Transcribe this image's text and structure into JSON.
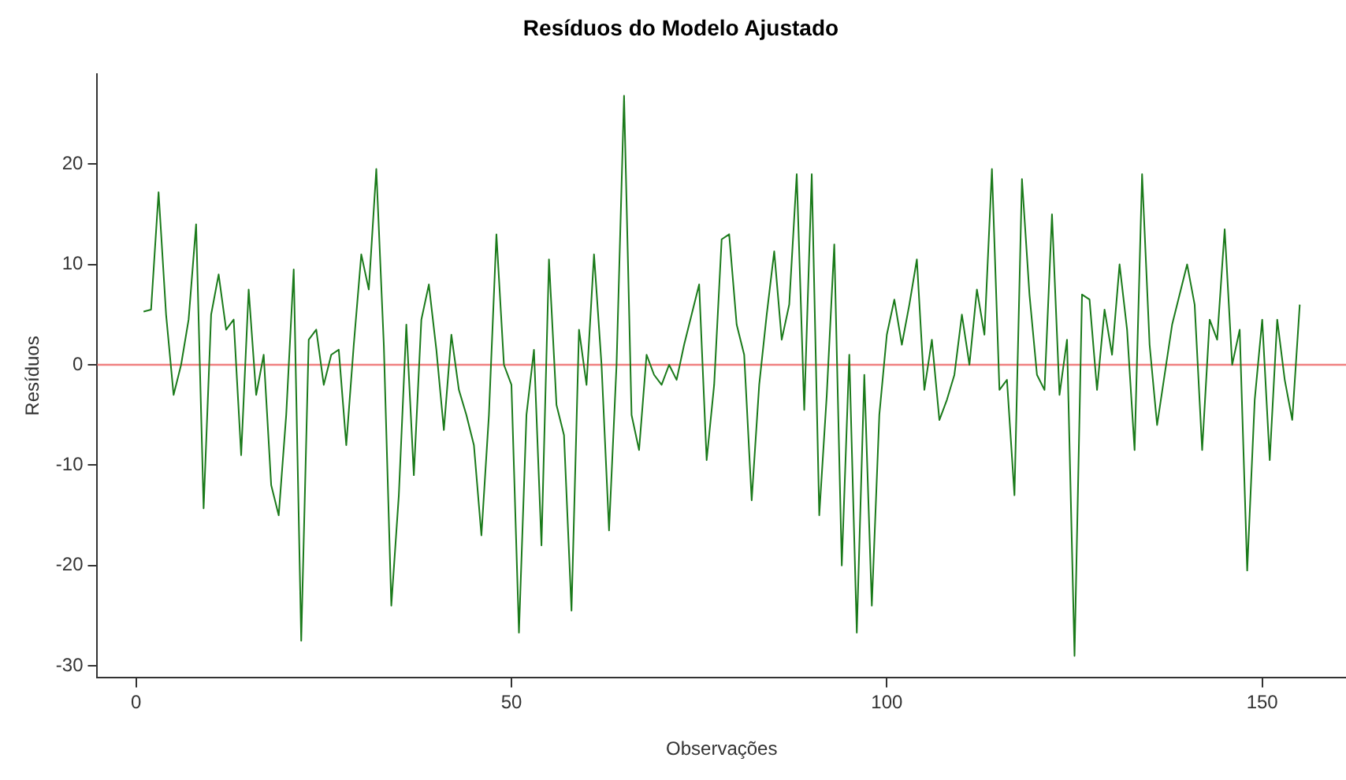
{
  "chart_data": {
    "type": "line",
    "title": "Resíduos do Modelo Ajustado",
    "xlabel": "Observações",
    "ylabel": "Resíduos",
    "x": [
      1,
      2,
      3,
      4,
      5,
      6,
      7,
      8,
      9,
      10,
      11,
      12,
      13,
      14,
      15,
      16,
      17,
      18,
      19,
      20,
      21,
      22,
      23,
      24,
      25,
      26,
      27,
      28,
      29,
      30,
      31,
      32,
      33,
      34,
      35,
      36,
      37,
      38,
      39,
      40,
      41,
      42,
      43,
      44,
      45,
      46,
      47,
      48,
      49,
      50,
      51,
      52,
      53,
      54,
      55,
      56,
      57,
      58,
      59,
      60,
      61,
      62,
      63,
      64,
      65,
      66,
      67,
      68,
      69,
      70,
      71,
      72,
      73,
      74,
      75,
      76,
      77,
      78,
      79,
      80,
      81,
      82,
      83,
      84,
      85,
      86,
      87,
      88,
      89,
      90,
      91,
      92,
      93,
      94,
      95,
      96,
      97,
      98,
      99,
      100,
      101,
      102,
      103,
      104,
      105,
      106,
      107,
      108,
      109,
      110,
      111,
      112,
      113,
      114,
      115,
      116,
      117,
      118,
      119,
      120,
      121,
      122,
      123,
      124,
      125,
      126,
      127,
      128,
      129,
      130,
      131,
      132,
      133,
      134,
      135,
      136,
      137,
      138,
      139,
      140,
      141,
      142,
      143,
      144,
      145,
      146,
      147,
      148,
      149,
      150,
      151,
      152,
      153,
      154,
      155
    ],
    "series": [
      {
        "color": "#1a7a1a",
        "values": [
          5.3,
          5.5,
          17.2,
          5,
          -3,
          0,
          4.5,
          14,
          -14.3,
          5,
          9,
          3.5,
          4.5,
          -9,
          7.5,
          -3,
          1,
          -12,
          -15,
          -5,
          9.5,
          -27.5,
          2.5,
          3.5,
          -2,
          1,
          1.5,
          -8,
          2,
          11,
          7.5,
          19.5,
          2,
          -24,
          -13,
          4,
          -11,
          4.5,
          8,
          1.5,
          -6.5,
          3,
          -2.5,
          -5,
          -8,
          -17,
          -5,
          13,
          0,
          -2,
          -26.7,
          -5,
          1.5,
          -18,
          10.5,
          -4,
          -7,
          -24.5,
          3.5,
          -2,
          11,
          0,
          -16.5,
          0,
          26.8,
          -5,
          -8.5,
          1,
          -1,
          -2,
          0,
          -1.5,
          2,
          5,
          8,
          -9.5,
          -2,
          12.5,
          13,
          4,
          1,
          -13.5,
          -2,
          5,
          11.3,
          2.5,
          6,
          19,
          -4.5,
          19,
          -15,
          -3,
          12,
          -20,
          1,
          -26.7,
          -1,
          -24,
          -5,
          3,
          6.5,
          2,
          6,
          10.5,
          -2.5,
          2.5,
          -5.5,
          -3.5,
          -1,
          5,
          0,
          7.5,
          3,
          19.5,
          -2.5,
          -1.5,
          -13,
          18.5,
          7,
          -1,
          -2.5,
          15,
          -3,
          2.5,
          -29,
          7,
          6.5,
          -2.5,
          5.5,
          1,
          10,
          3.5,
          -8.5,
          19,
          2,
          -6,
          -1,
          4,
          7,
          10,
          6,
          -8.5,
          4.5,
          2.5,
          13.5,
          0,
          3.5,
          -20.5,
          -3.5,
          4.5,
          -9.5,
          4.5,
          -1.5,
          -5.5,
          6
        ]
      }
    ],
    "xlim": [
      -5.16,
      161.16
    ],
    "ylim": [
      -31.2,
      29
    ],
    "xticks": [
      0,
      50,
      100,
      150
    ],
    "yticks": [
      -30,
      -20,
      -10,
      0,
      10,
      20
    ],
    "ref_lines": [
      {
        "axis": "y",
        "value": 0,
        "color": "#f08080"
      }
    ],
    "grid": false,
    "marker": "none",
    "line_style": "solid",
    "legend": false
  }
}
